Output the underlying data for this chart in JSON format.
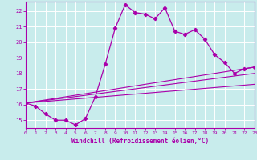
{
  "xlabel": "Windchill (Refroidissement éolien,°C)",
  "bg_color": "#c8ecec",
  "grid_color": "#ffffff",
  "line_color": "#aa00aa",
  "xlim": [
    0,
    23
  ],
  "ylim": [
    14.5,
    22.6
  ],
  "yticks": [
    15,
    16,
    17,
    18,
    19,
    20,
    21,
    22
  ],
  "xticks": [
    0,
    1,
    2,
    3,
    4,
    5,
    6,
    7,
    8,
    9,
    10,
    11,
    12,
    13,
    14,
    15,
    16,
    17,
    18,
    19,
    20,
    21,
    22,
    23
  ],
  "series": [
    [
      0,
      16.1
    ],
    [
      1,
      15.9
    ],
    [
      2,
      15.4
    ],
    [
      3,
      15.0
    ],
    [
      4,
      15.0
    ],
    [
      5,
      14.7
    ],
    [
      6,
      15.1
    ],
    [
      7,
      16.5
    ],
    [
      8,
      18.6
    ],
    [
      9,
      20.9
    ],
    [
      10,
      22.4
    ],
    [
      11,
      21.9
    ],
    [
      12,
      21.8
    ],
    [
      13,
      21.5
    ],
    [
      14,
      22.2
    ],
    [
      15,
      20.7
    ],
    [
      16,
      20.5
    ],
    [
      17,
      20.8
    ],
    [
      18,
      20.2
    ],
    [
      19,
      19.2
    ],
    [
      20,
      18.7
    ],
    [
      21,
      18.0
    ],
    [
      22,
      18.3
    ],
    [
      23,
      18.4
    ]
  ],
  "straight_lines": [
    [
      [
        0,
        16.1
      ],
      [
        23,
        17.3
      ]
    ],
    [
      [
        0,
        16.1
      ],
      [
        23,
        18.0
      ]
    ],
    [
      [
        0,
        16.1
      ],
      [
        23,
        18.4
      ]
    ]
  ]
}
